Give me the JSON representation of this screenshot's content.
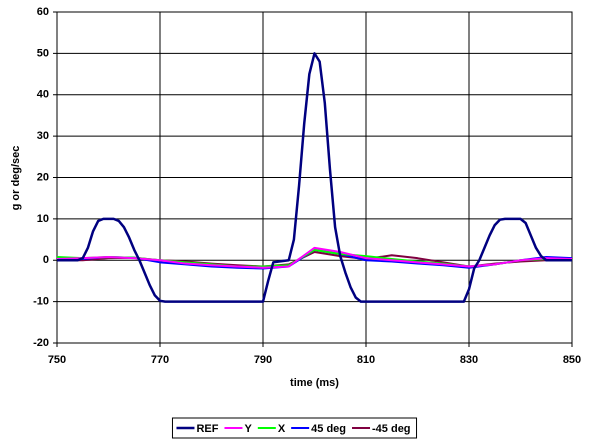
{
  "chart_data": {
    "type": "line",
    "xlabel": "time (ms)",
    "ylabel": "g or deg/sec",
    "xlim": [
      750,
      850
    ],
    "xticks": [
      750,
      770,
      790,
      810,
      830,
      850
    ],
    "ylim": [
      -20,
      60
    ],
    "yticks": [
      -20,
      -10,
      0,
      10,
      20,
      30,
      40,
      50,
      60
    ],
    "grid": true,
    "legend": "bottom",
    "series": [
      {
        "name": "REF",
        "color": "#000080",
        "x": [
          750,
          754,
          755,
          756,
          757,
          758,
          759,
          761,
          762,
          763,
          764,
          765,
          766,
          767,
          768,
          769,
          770,
          771,
          790,
          791,
          792,
          795,
          796,
          797,
          798,
          799,
          800,
          801,
          802,
          803,
          804,
          805,
          806,
          807,
          808,
          809,
          829,
          830,
          831,
          832,
          833,
          834,
          835,
          836,
          837,
          840,
          841,
          842,
          843,
          844,
          845,
          850
        ],
        "values": [
          0,
          0,
          0.5,
          3,
          7,
          9.5,
          10,
          10,
          9.5,
          8,
          5.5,
          2.5,
          0,
          -3,
          -6,
          -8.5,
          -9.8,
          -10,
          -10,
          -5,
          -0.5,
          0,
          5,
          18,
          33,
          45,
          50,
          48,
          38,
          22,
          8,
          1,
          -3,
          -6.5,
          -9,
          -10,
          -10,
          -7,
          -2,
          0,
          3,
          6,
          8.5,
          9.8,
          10,
          10,
          9,
          6,
          3,
          1,
          0,
          0
        ]
      },
      {
        "name": "Y",
        "color": "#ff00ff",
        "x": [
          750,
          755,
          760,
          765,
          770,
          775,
          780,
          785,
          790,
          795,
          800,
          805,
          810,
          815,
          820,
          825,
          830,
          835,
          840,
          845,
          850
        ],
        "values": [
          0.3,
          0.5,
          0.8,
          0.5,
          0,
          -0.8,
          -1.2,
          -1.5,
          -1.8,
          -1.5,
          3,
          2,
          0.5,
          0,
          -0.5,
          -1,
          -1.5,
          -1,
          0,
          0.5,
          0.3
        ]
      },
      {
        "name": "X",
        "color": "#00ff00",
        "x": [
          750,
          755,
          760,
          765,
          770,
          775,
          780,
          785,
          790,
          795,
          800,
          805,
          810,
          815,
          820,
          825,
          830,
          835,
          840,
          845,
          850
        ],
        "values": [
          0.8,
          0.5,
          0.8,
          0.6,
          0,
          -0.5,
          -1,
          -1.5,
          -1.5,
          -1.2,
          2.5,
          1.5,
          1,
          0.3,
          -0.3,
          -0.8,
          -1.5,
          -1,
          0,
          0.3,
          0.3
        ]
      },
      {
        "name": "45 deg",
        "color": "#0000ff",
        "x": [
          750,
          755,
          760,
          765,
          770,
          775,
          780,
          785,
          790,
          795,
          800,
          805,
          810,
          815,
          820,
          825,
          830,
          835,
          840,
          845,
          850
        ],
        "values": [
          0,
          0.3,
          0.8,
          0.6,
          -0.5,
          -1,
          -1.5,
          -1.8,
          -2,
          -1.5,
          2.5,
          1.5,
          0,
          -0.3,
          -0.8,
          -1.2,
          -1.8,
          -1,
          0,
          0.8,
          0.5
        ]
      },
      {
        "name": "-45 deg",
        "color": "#800040",
        "x": [
          750,
          755,
          760,
          765,
          770,
          775,
          780,
          785,
          790,
          795,
          800,
          805,
          810,
          815,
          820,
          825,
          830,
          835,
          840,
          845,
          850
        ],
        "values": [
          0,
          0,
          0.5,
          0.6,
          0,
          -0.3,
          -0.8,
          -1.2,
          -1.5,
          -1,
          2,
          1,
          0.3,
          1.2,
          0.5,
          -0.5,
          -1.5,
          -0.8,
          -0.3,
          0,
          0
        ]
      }
    ]
  }
}
